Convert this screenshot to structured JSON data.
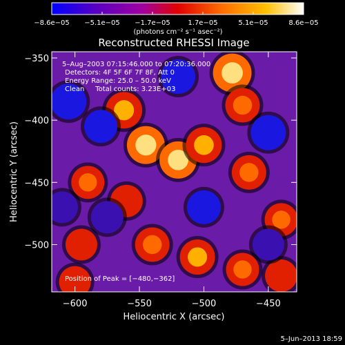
{
  "chart_data": {
    "type": "heatmap",
    "title": "Reconstructed RHESSI Image",
    "xlabel": "Heliocentric X (arcsec)",
    "ylabel": "Heliocentric Y (arcsec)",
    "xlim": [
      -618,
      -428
    ],
    "ylim": [
      -538,
      -345
    ],
    "x_ticks": [
      -600,
      -550,
      -500,
      -450
    ],
    "x_tick_labels": [
      "−600",
      "−550",
      "−500",
      "−450"
    ],
    "y_ticks": [
      -350,
      -400,
      -450,
      -500
    ],
    "y_tick_labels": [
      "−350",
      "−400",
      "−450",
      "−500"
    ],
    "colorbar": {
      "range": [
        -8.6e-05,
        8.6e-05
      ],
      "tick_labels": [
        "−8.6e−05",
        "−5.1e−05",
        "−1.7e−05",
        "1.7e−05",
        "5.1e−05",
        "8.6e−05"
      ],
      "unit_label": "(photons cm⁻² s⁻¹ asec⁻²)",
      "colors": [
        "#0000ff",
        "#5a00c0",
        "#a000a0",
        "#e00000",
        "#ff7000",
        "#ffc000",
        "#ffffff"
      ]
    },
    "annotations": [
      "5–Aug–2003 07:15:46.000 to 07:20:36.000",
      "Detectors: 4F 5F 6F 7F 8F, Att 0",
      "Energy Range: 25.0 – 50.0 keV",
      "Clean     Total counts: 3.23E+03"
    ],
    "peak_label": "Position of Peak = [−480,−362]",
    "peak": [
      -480,
      -362
    ],
    "image_sources": [
      {
        "x": -562,
        "y": -392,
        "v": 0.85
      },
      {
        "x": -545,
        "y": -420,
        "v": 0.95
      },
      {
        "x": -520,
        "y": -432,
        "v": 0.9
      },
      {
        "x": -500,
        "y": -420,
        "v": 0.8
      },
      {
        "x": -478,
        "y": -362,
        "v": 1.0
      },
      {
        "x": -470,
        "y": -388,
        "v": 0.7
      },
      {
        "x": -465,
        "y": -442,
        "v": 0.7
      },
      {
        "x": -440,
        "y": -480,
        "v": 0.6
      },
      {
        "x": -590,
        "y": -450,
        "v": 0.6
      },
      {
        "x": -560,
        "y": -465,
        "v": 0.55
      },
      {
        "x": -595,
        "y": -500,
        "v": 0.5
      },
      {
        "x": -540,
        "y": -500,
        "v": 0.7
      },
      {
        "x": -505,
        "y": -510,
        "v": 0.75
      },
      {
        "x": -470,
        "y": -520,
        "v": 0.6
      },
      {
        "x": -440,
        "y": -525,
        "v": 0.55
      },
      {
        "x": -600,
        "y": -530,
        "v": 0.5
      },
      {
        "x": -580,
        "y": -405,
        "v": -0.6
      },
      {
        "x": -605,
        "y": -385,
        "v": -0.8
      },
      {
        "x": -520,
        "y": -365,
        "v": -0.7
      },
      {
        "x": -450,
        "y": -410,
        "v": -0.75
      },
      {
        "x": -500,
        "y": -470,
        "v": -0.65
      },
      {
        "x": -575,
        "y": -478,
        "v": -0.55
      },
      {
        "x": -450,
        "y": -500,
        "v": -0.5
      },
      {
        "x": -610,
        "y": -470,
        "v": -0.5
      }
    ]
  },
  "footer": {
    "date": "5–Jun–2013 18:59"
  }
}
